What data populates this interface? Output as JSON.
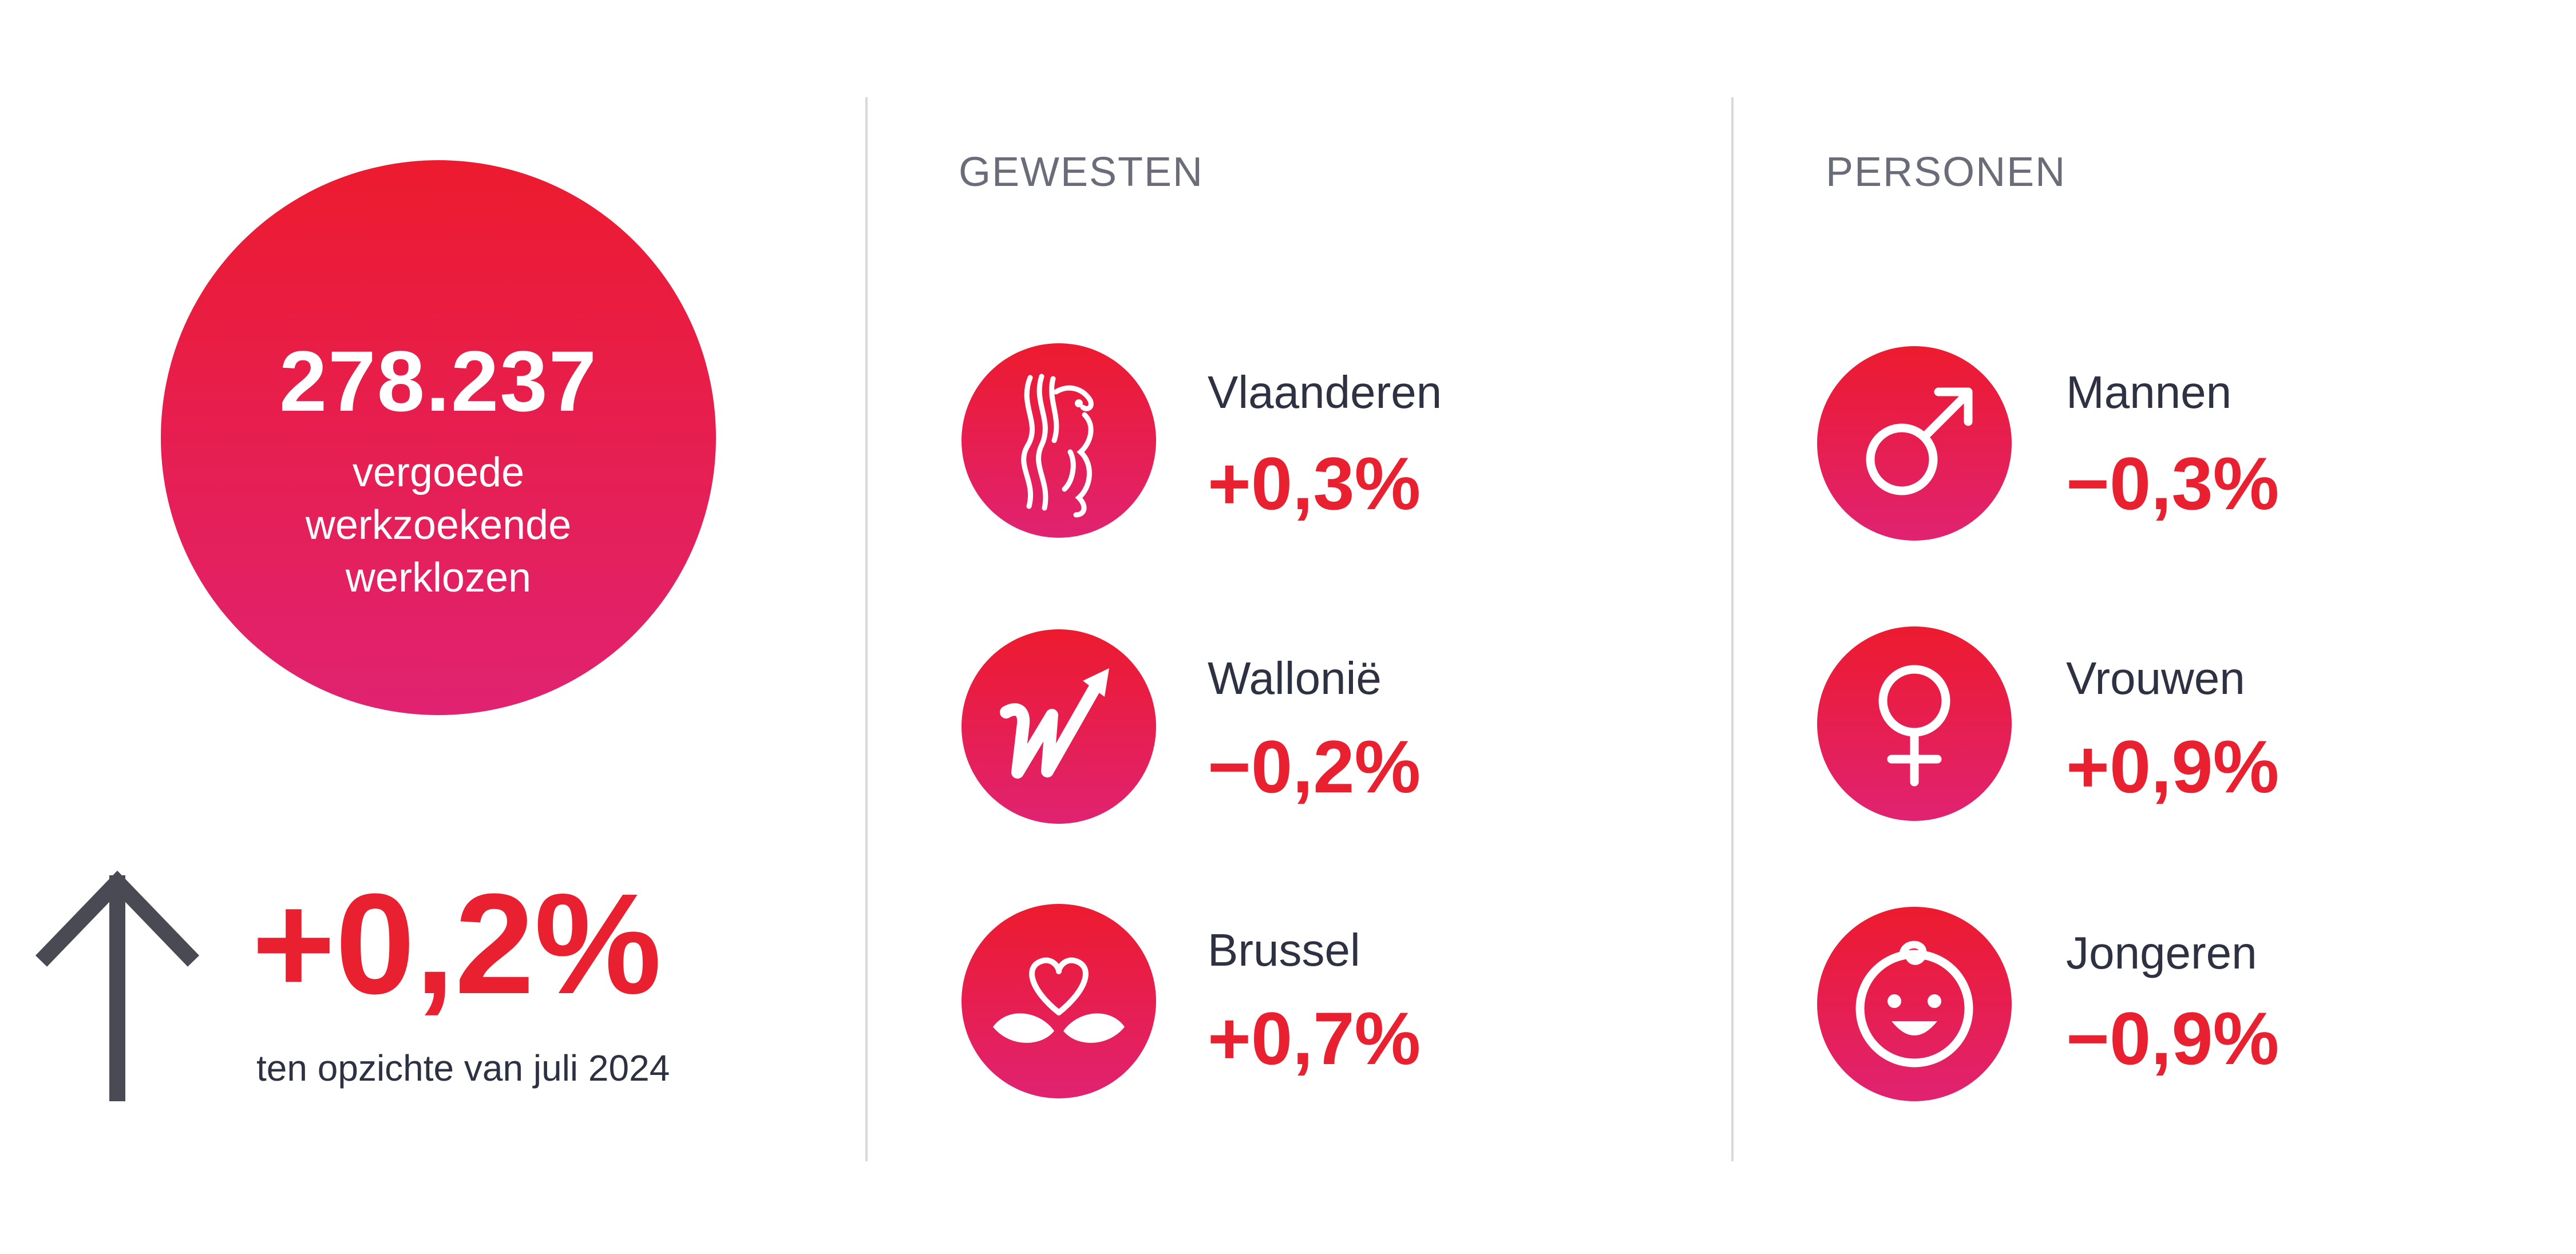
{
  "summary": {
    "number": "278.237",
    "label_lines": [
      "vergoede",
      "werkzoekende",
      "werklozen"
    ],
    "change": "+0,2%",
    "comparison": "ten opzichte van juli 2024",
    "trend_icon": "arrow-up-icon"
  },
  "sections": {
    "gewesten": {
      "heading": "GEWESTEN",
      "items": [
        {
          "label": "Vlaanderen",
          "value": "+0,3%",
          "icon": "flemish-lion-icon"
        },
        {
          "label": "Wallonië",
          "value": "−0,2%",
          "icon": "walloon-w-icon"
        },
        {
          "label": "Brussel",
          "value": "+0,7%",
          "icon": "brussels-heart-icon"
        }
      ]
    },
    "personen": {
      "heading": "PERSONEN",
      "items": [
        {
          "label": "Mannen",
          "value": "−0,3%",
          "icon": "male-symbol-icon"
        },
        {
          "label": "Vrouwen",
          "value": "+0,9%",
          "icon": "female-symbol-icon"
        },
        {
          "label": "Jongeren",
          "value": "−0,9%",
          "icon": "baby-face-icon"
        }
      ]
    }
  },
  "colors": {
    "accent_red": "#e8202f",
    "gradient_top": "#ed1b2f",
    "gradient_bottom": "#e02271",
    "text_dark": "#2d3142",
    "heading_gray": "#6a6c78",
    "divider": "#d9d9d9"
  }
}
